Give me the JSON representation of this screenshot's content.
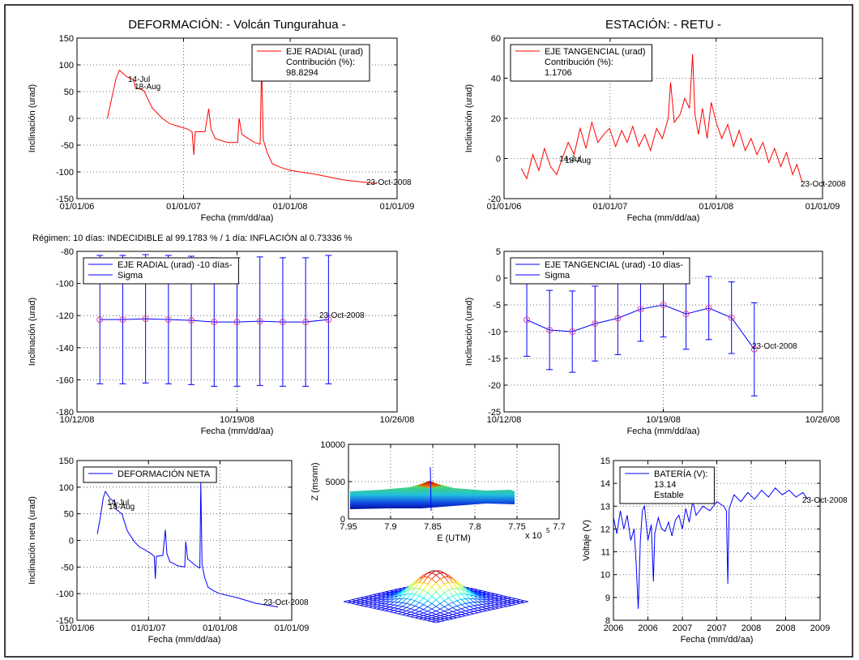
{
  "note": "Régimen: 10 días: INDECIDIBLE al 99.1783 % / 1 día: INFLACIÓN al 0.73336 %",
  "chart_data": [
    {
      "type": "line",
      "title": "DEFORMACIÓN: - Volcán Tungurahua -",
      "xlabel": "Fecha (mm/dd/aa)",
      "ylabel": "Inclinación (urad)",
      "xlim": [
        "01/01/06",
        "01/01/09"
      ],
      "xticks": [
        "01/01/06",
        "01/01/07",
        "01/01/08",
        "01/01/09"
      ],
      "ylim": [
        -150,
        150
      ],
      "yticks": [
        -150,
        -100,
        -50,
        0,
        50,
        100,
        150
      ],
      "grid": true,
      "legend": "upper right",
      "legend_notes": [
        "Contribución (%):",
        "98.8294"
      ],
      "annotations": [
        "14-Jul",
        "18-Aug",
        "23-Oct-2008"
      ],
      "x": [
        "04/15/06",
        "05/01/06",
        "05/15/06",
        "05/26/06",
        "06/20/06",
        "07/14/06",
        "07/20/06",
        "08/18/06",
        "09/15/06",
        "10/20/06",
        "11/15/06",
        "12/15/06",
        "01/15/07",
        "01/30/07",
        "02/05/07",
        "02/10/07",
        "03/15/07",
        "03/28/07",
        "04/05/07",
        "04/20/07",
        "06/01/07",
        "07/05/07",
        "07/10/07",
        "07/20/07",
        "09/01/07",
        "09/20/07",
        "09/25/07",
        "10/01/07",
        "10/15/07",
        "11/01/07",
        "12/01/07",
        "01/01/08",
        "04/01/08",
        "07/01/08",
        "10/23/08"
      ],
      "series": [
        {
          "name": "EJE RADIAL (urad)",
          "color": "#ff0000",
          "values": [
            0,
            40,
            75,
            90,
            78,
            72,
            58,
            52,
            20,
            0,
            -10,
            -15,
            -20,
            -25,
            -68,
            -25,
            -25,
            18,
            -20,
            -38,
            -45,
            -45,
            0,
            -30,
            -45,
            -48,
            100,
            -40,
            -65,
            -85,
            -92,
            -97,
            -105,
            -115,
            -122
          ]
        }
      ]
    },
    {
      "type": "line",
      "title": "ESTACIÓN: - RETU -",
      "xlabel": "Fecha (mm/dd/aa)",
      "ylabel": "Inclinación (urad)",
      "xlim": [
        "01/01/06",
        "01/01/09"
      ],
      "xticks": [
        "01/01/06",
        "01/01/07",
        "01/01/08",
        "01/01/09"
      ],
      "ylim": [
        -20,
        60
      ],
      "yticks": [
        -20,
        0,
        20,
        40,
        60
      ],
      "grid": true,
      "legend": "upper left",
      "legend_notes": [
        "Contribución (%):",
        "1.1706"
      ],
      "annotations": [
        "14-Jul",
        "18-Aug",
        "23-Oct-2008"
      ],
      "x": [
        "03/01/06",
        "03/20/06",
        "04/10/06",
        "05/01/06",
        "05/20/06",
        "06/10/06",
        "07/01/06",
        "07/20/06",
        "08/10/06",
        "08/30/06",
        "09/20/06",
        "10/10/06",
        "10/30/06",
        "11/20/06",
        "12/10/06",
        "12/30/06",
        "01/20/07",
        "02/10/07",
        "03/01/07",
        "03/20/07",
        "04/10/07",
        "04/30/07",
        "05/20/07",
        "06/10/07",
        "06/30/07",
        "07/20/07",
        "07/28/07",
        "08/10/07",
        "08/30/07",
        "09/15/07",
        "10/01/07",
        "10/12/07",
        "10/20/07",
        "11/01/07",
        "11/15/07",
        "12/01/07",
        "12/15/07",
        "01/01/08",
        "01/20/08",
        "02/10/08",
        "03/01/08",
        "03/20/08",
        "04/10/08",
        "04/30/08",
        "05/20/08",
        "06/10/08",
        "06/30/08",
        "07/20/08",
        "08/10/08",
        "08/30/08",
        "09/20/08",
        "10/05/08",
        "10/23/08"
      ],
      "series": [
        {
          "name": "EJE TANGENCIAL (urad)",
          "color": "#ff0000",
          "values": [
            -5,
            -10,
            2,
            -6,
            5,
            -4,
            -8,
            0,
            8,
            2,
            15,
            5,
            18,
            8,
            12,
            15,
            6,
            14,
            8,
            16,
            6,
            12,
            4,
            15,
            10,
            20,
            38,
            18,
            22,
            30,
            25,
            52,
            22,
            12,
            25,
            10,
            28,
            18,
            10,
            17,
            6,
            14,
            4,
            10,
            2,
            8,
            -2,
            5,
            -4,
            3,
            -8,
            -3,
            -12
          ]
        }
      ]
    },
    {
      "type": "errorbar",
      "xlabel": "Fecha (mm/dd/aa)",
      "ylabel": "Inclinación (urad)",
      "xlim": [
        "10/12/08",
        "10/26/08"
      ],
      "xticks": [
        "10/12/08",
        "10/19/08",
        "10/26/08"
      ],
      "ylim": [
        -180,
        -80
      ],
      "yticks": [
        -180,
        -160,
        -140,
        -120,
        -100,
        -80
      ],
      "grid": true,
      "legend": "upper left",
      "annotations": [
        "23-Oct-2008"
      ],
      "marker_color": "#e0409f",
      "x": [
        "10/13/08",
        "10/14/08",
        "10/15/08",
        "10/16/08",
        "10/17/08",
        "10/18/08",
        "10/19/08",
        "10/20/08",
        "10/21/08",
        "10/22/08",
        "10/23/08"
      ],
      "series": [
        {
          "name": "EJE RADIAL (urad) -10 días-",
          "error_name": "Sigma",
          "color": "#0000ff",
          "values": [
            -122.5,
            -122.5,
            -122,
            -122.5,
            -123,
            -124,
            -124,
            -123.5,
            -124,
            -124,
            -122.5
          ],
          "errors": [
            40,
            40,
            40,
            40,
            40,
            40,
            40,
            40,
            40,
            40,
            40
          ]
        }
      ]
    },
    {
      "type": "errorbar",
      "xlabel": "Fecha (mm/dd/aa)",
      "ylabel": "Inclinación (urad)",
      "xlim": [
        "10/12/08",
        "10/26/08"
      ],
      "xticks": [
        "10/12/08",
        "10/19/08",
        "10/26/08"
      ],
      "ylim": [
        -25,
        5
      ],
      "yticks": [
        -25,
        -20,
        -15,
        -10,
        -5,
        0,
        5
      ],
      "grid": true,
      "legend": "upper left",
      "annotations": [
        "23-Oct-2008"
      ],
      "marker_color": "#e0409f",
      "x": [
        "10/13/08",
        "10/14/08",
        "10/15/08",
        "10/16/08",
        "10/17/08",
        "10/18/08",
        "10/19/08",
        "10/20/08",
        "10/21/08",
        "10/22/08",
        "10/23/08"
      ],
      "series": [
        {
          "name": "EJE TANGENCIAL (urad) -10 días-",
          "error_name": "Sigma",
          "color": "#0000ff",
          "values": [
            -7.8,
            -9.7,
            -10,
            -8.5,
            -7.5,
            -5.8,
            -5,
            -6.7,
            -5.6,
            -7.4,
            -13.3
          ],
          "errors": [
            6.8,
            7.4,
            7.6,
            7,
            6.8,
            6,
            6,
            6.6,
            5.9,
            6.7,
            8.7
          ]
        }
      ]
    },
    {
      "type": "line",
      "xlabel": "Fecha (mm/dd/aa)",
      "ylabel": "Inclinación neta (urad)",
      "xlim": [
        "01/01/06",
        "01/01/09"
      ],
      "xticks": [
        "01/01/06",
        "01/01/07",
        "01/01/08",
        "01/01/09"
      ],
      "ylim": [
        -150,
        150
      ],
      "yticks": [
        -150,
        -100,
        -50,
        0,
        50,
        100,
        150
      ],
      "grid": true,
      "legend": "upper left",
      "annotations": [
        "14-Jul",
        "18-Aug",
        "23-Oct-2008"
      ],
      "x": [
        "04/15/06",
        "05/01/06",
        "05/15/06",
        "05/26/06",
        "06/20/06",
        "07/14/06",
        "07/20/06",
        "08/18/06",
        "09/15/06",
        "10/20/06",
        "11/15/06",
        "12/15/06",
        "01/15/07",
        "01/30/07",
        "02/05/07",
        "02/10/07",
        "03/15/07",
        "03/28/07",
        "04/05/07",
        "04/20/07",
        "06/01/07",
        "07/05/07",
        "07/10/07",
        "07/20/07",
        "09/01/07",
        "09/20/07",
        "09/25/07",
        "10/01/07",
        "10/15/07",
        "11/01/07",
        "12/01/07",
        "01/01/08",
        "04/01/08",
        "07/01/08",
        "10/23/08"
      ],
      "series": [
        {
          "name": "DEFORMACIÓN NETA",
          "color": "#0000ff",
          "values": [
            12,
            45,
            80,
            92,
            78,
            72,
            58,
            50,
            18,
            -2,
            -12,
            -18,
            -25,
            -30,
            -72,
            -30,
            -28,
            20,
            -25,
            -40,
            -48,
            -50,
            -2,
            -35,
            -48,
            -52,
            110,
            -45,
            -70,
            -88,
            -95,
            -100,
            -108,
            -118,
            -125
          ]
        }
      ]
    },
    {
      "type": "surface",
      "xlabel": "E (UTM)",
      "ylabel": "Z (msnm)",
      "x_scale_label": "x 10",
      "x_scale_exponent": "5",
      "xlim": [
        7.95,
        7.7
      ],
      "xticks": [
        7.95,
        7.9,
        7.85,
        7.8,
        7.75,
        7.7
      ],
      "ylim": [
        0,
        10000
      ],
      "yticks": [
        0,
        5000,
        10000
      ],
      "grid": true
    },
    {
      "type": "line",
      "xlabel": "Fecha (mm/dd/aa)",
      "ylabel": "Voltaje (V)",
      "xlim": [
        2006,
        2009
      ],
      "xticks": [
        2006,
        {
          "value": 2006.5,
          "label": "2006"
        },
        2007,
        {
          "value": 2007.5,
          "label": "2007"
        },
        2008,
        {
          "value": 2008.5,
          "label": "2008"
        },
        2009
      ],
      "ylim": [
        8,
        15
      ],
      "yticks": [
        8,
        9,
        10,
        11,
        12,
        13,
        14,
        15
      ],
      "grid": true,
      "legend": "upper left",
      "legend_notes": [
        "13.14",
        "Estable"
      ],
      "annotations": [
        "23-Oct-2008"
      ],
      "x": [
        2006.0,
        2006.05,
        2006.1,
        2006.15,
        2006.2,
        2006.25,
        2006.3,
        2006.33,
        2006.36,
        2006.39,
        2006.42,
        2006.45,
        2006.5,
        2006.55,
        2006.58,
        2006.6,
        2006.65,
        2006.7,
        2006.75,
        2006.8,
        2006.85,
        2006.9,
        2006.95,
        2007.0,
        2007.05,
        2007.1,
        2007.15,
        2007.2,
        2007.3,
        2007.4,
        2007.5,
        2007.6,
        2007.64,
        2007.66,
        2007.68,
        2007.75,
        2007.85,
        2007.95,
        2008.05,
        2008.15,
        2008.25,
        2008.35,
        2008.45,
        2008.55,
        2008.65,
        2008.75,
        2008.82
      ],
      "series": [
        {
          "name": "BATERÍA (V):",
          "color": "#0000ff",
          "values": [
            12.5,
            11.8,
            12.8,
            12.0,
            12.6,
            11.5,
            12.0,
            10.5,
            8.5,
            11.5,
            12.8,
            13.0,
            11.5,
            12.2,
            9.7,
            11.8,
            12.5,
            12.0,
            11.9,
            12.3,
            11.7,
            12.4,
            12.6,
            12.0,
            12.9,
            12.3,
            13.2,
            12.6,
            13.0,
            12.8,
            13.2,
            13.0,
            12.8,
            9.6,
            12.9,
            13.5,
            13.2,
            13.6,
            13.3,
            13.7,
            13.4,
            13.8,
            13.5,
            13.7,
            13.4,
            13.6,
            13.3
          ]
        }
      ]
    }
  ]
}
